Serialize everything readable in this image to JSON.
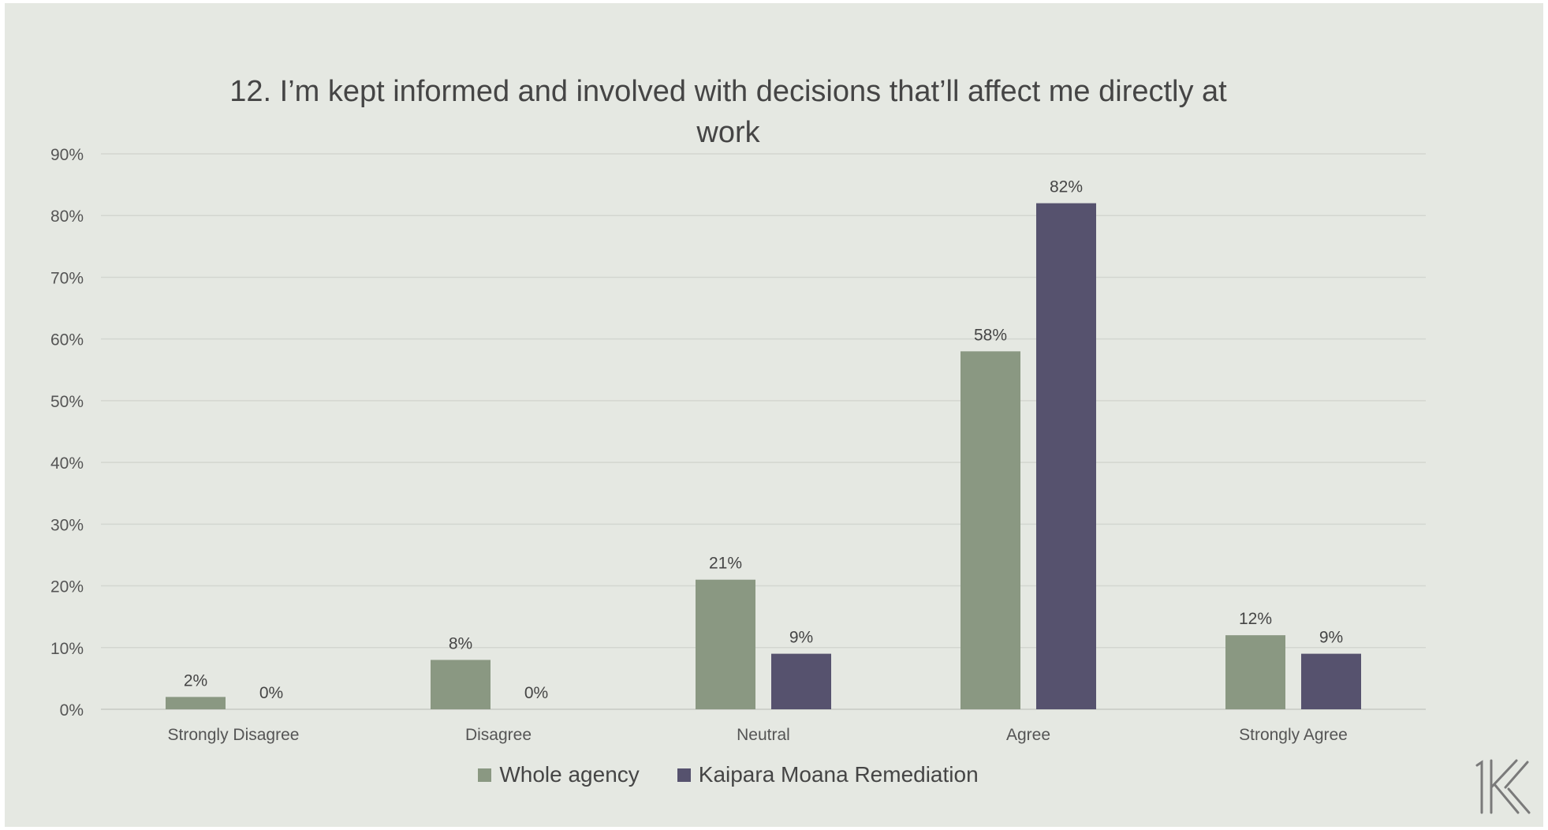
{
  "chart_data": {
    "type": "bar",
    "title": "12.   I’m kept informed and involved with decisions that’ll affect me directly at work",
    "title_lines": [
      "12.   I’m kept informed and involved with decisions that’ll affect me directly at",
      "work"
    ],
    "categories": [
      "Strongly Disagree",
      "Disagree",
      "Neutral",
      "Agree",
      "Strongly Agree"
    ],
    "series": [
      {
        "name": "Whole agency",
        "values": [
          2,
          8,
          21,
          58,
          12
        ],
        "labels": [
          "2%",
          "8%",
          "21%",
          "58%",
          "12%"
        ],
        "color": "#8a9882"
      },
      {
        "name": "Kaipara Moana Remediation",
        "values": [
          0,
          0,
          9,
          82,
          9
        ],
        "labels": [
          "0%",
          "0%",
          "9%",
          "82%",
          "9%"
        ],
        "color": "#56526e"
      }
    ],
    "ylim": [
      0,
      90
    ],
    "yticks": [
      0,
      10,
      20,
      30,
      40,
      50,
      60,
      70,
      80,
      90
    ],
    "ytick_labels": [
      "0%",
      "10%",
      "20%",
      "30%",
      "40%",
      "50%",
      "60%",
      "70%",
      "80%",
      "90%"
    ],
    "grid": true,
    "legend_position": "bottom"
  },
  "colors": {
    "background": "#e5e8e2",
    "gridline": "#d3d6d0",
    "text": "#555555"
  },
  "logo_icon": "logo-mark-icon"
}
